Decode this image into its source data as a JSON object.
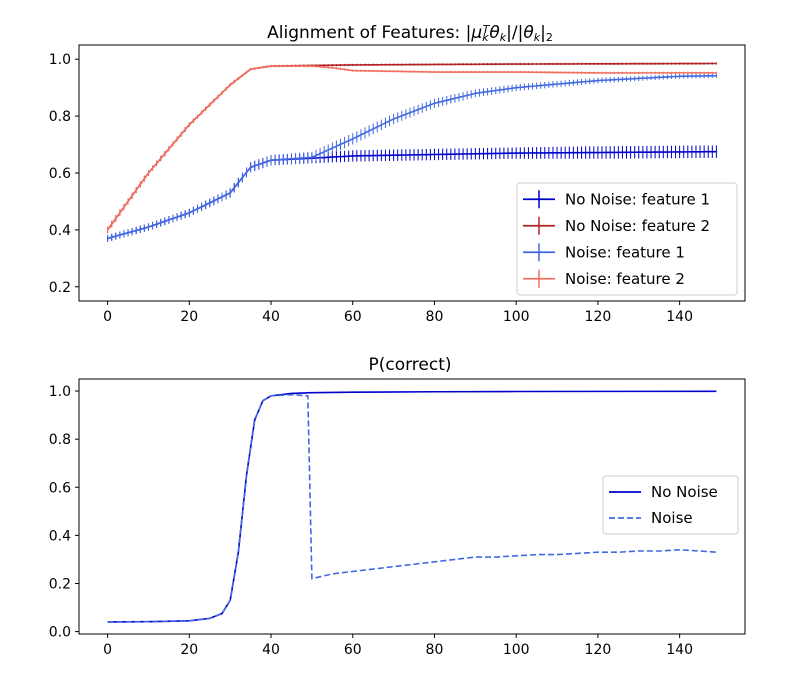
{
  "chart_data": [
    {
      "type": "line",
      "title": "Alignment of Features: |μ_k^T θ_k|/|θ_k|_2",
      "title_parts": {
        "prefix": "Alignment of Features: |",
        "mu": "μ",
        "mu_sub": "k",
        "mu_sup": "T",
        "theta1": "θ",
        "theta1_sub": "k",
        "mid": "|/|",
        "theta2": "θ",
        "theta2_sub": "k",
        "end": "|",
        "end_sub": "2"
      },
      "xlabel": "",
      "ylabel": "",
      "xlim": [
        -7,
        156
      ],
      "ylim": [
        0.15,
        1.05
      ],
      "xticks": [
        0,
        20,
        40,
        60,
        80,
        100,
        120,
        140
      ],
      "yticks": [
        0.2,
        0.4,
        0.6,
        0.8,
        1.0
      ],
      "ytick_labels": [
        "0.2",
        "0.4",
        "0.6",
        "0.8",
        "1.0"
      ],
      "grid": false,
      "legend_position": "lower right",
      "series": [
        {
          "name": "No Noise: feature 1",
          "color": "#0000cd",
          "errorbar": true,
          "x": [
            0,
            10,
            20,
            30,
            35,
            40,
            50,
            60,
            80,
            100,
            120,
            149
          ],
          "y": [
            0.37,
            0.41,
            0.46,
            0.53,
            0.62,
            0.645,
            0.652,
            0.66,
            0.665,
            0.67,
            0.672,
            0.675
          ],
          "err": [
            0.012,
            0.013,
            0.014,
            0.016,
            0.018,
            0.018,
            0.018,
            0.02,
            0.02,
            0.02,
            0.022,
            0.022
          ]
        },
        {
          "name": "No Noise: feature 2",
          "color": "#b22222",
          "errorbar": true,
          "x": [
            0,
            10,
            20,
            30,
            35,
            40,
            50,
            60,
            100,
            149
          ],
          "y": [
            0.4,
            0.6,
            0.77,
            0.91,
            0.965,
            0.976,
            0.978,
            0.98,
            0.983,
            0.985
          ],
          "err": [
            0.012,
            0.01,
            0.008,
            0.006,
            0.004,
            0.004,
            0.004,
            0.004,
            0.004,
            0.004
          ]
        },
        {
          "name": "Noise: feature 1",
          "color": "#4169e1",
          "errorbar": true,
          "x": [
            0,
            10,
            20,
            30,
            35,
            40,
            50,
            60,
            70,
            80,
            90,
            100,
            120,
            140,
            149
          ],
          "y": [
            0.37,
            0.41,
            0.46,
            0.53,
            0.62,
            0.645,
            0.655,
            0.72,
            0.79,
            0.845,
            0.88,
            0.9,
            0.925,
            0.94,
            0.942
          ],
          "err": [
            0.012,
            0.013,
            0.014,
            0.016,
            0.018,
            0.018,
            0.02,
            0.02,
            0.018,
            0.016,
            0.014,
            0.012,
            0.01,
            0.008,
            0.008
          ]
        },
        {
          "name": "Noise: feature 2",
          "color": "#f07060",
          "errorbar": true,
          "x": [
            0,
            10,
            20,
            30,
            35,
            40,
            50,
            55,
            60,
            80,
            100,
            120,
            149
          ],
          "y": [
            0.4,
            0.6,
            0.77,
            0.91,
            0.965,
            0.976,
            0.976,
            0.97,
            0.96,
            0.955,
            0.955,
            0.952,
            0.952
          ],
          "err": [
            0.012,
            0.01,
            0.008,
            0.006,
            0.004,
            0.004,
            0.004,
            0.004,
            0.004,
            0.004,
            0.004,
            0.004,
            0.004
          ]
        }
      ]
    },
    {
      "type": "line",
      "title": "P(correct)",
      "xlabel": "",
      "ylabel": "",
      "xlim": [
        -7,
        156
      ],
      "ylim": [
        -0.01,
        1.05
      ],
      "xticks": [
        0,
        20,
        40,
        60,
        80,
        100,
        120,
        140
      ],
      "yticks": [
        0.0,
        0.2,
        0.4,
        0.6,
        0.8,
        1.0
      ],
      "ytick_labels": [
        "0.0",
        "0.2",
        "0.4",
        "0.6",
        "0.8",
        "1.0"
      ],
      "grid": false,
      "legend_position": "center right",
      "series": [
        {
          "name": "No Noise",
          "color": "#0000cd",
          "style": "solid",
          "x": [
            0,
            10,
            20,
            25,
            28,
            30,
            32,
            34,
            36,
            38,
            40,
            45,
            50,
            60,
            80,
            100,
            149
          ],
          "y": [
            0.04,
            0.041,
            0.045,
            0.055,
            0.075,
            0.13,
            0.33,
            0.65,
            0.88,
            0.96,
            0.98,
            0.99,
            0.993,
            0.995,
            0.997,
            0.998,
            0.999
          ]
        },
        {
          "name": "Noise",
          "color": "#4169e1",
          "style": "dashed",
          "x": [
            0,
            10,
            20,
            25,
            28,
            30,
            32,
            34,
            36,
            38,
            40,
            45,
            49,
            50,
            55,
            60,
            65,
            70,
            75,
            80,
            85,
            90,
            95,
            100,
            105,
            110,
            115,
            120,
            125,
            130,
            135,
            140,
            145,
            149
          ],
          "y": [
            0.04,
            0.041,
            0.045,
            0.055,
            0.075,
            0.13,
            0.33,
            0.65,
            0.88,
            0.96,
            0.98,
            0.985,
            0.98,
            0.22,
            0.24,
            0.25,
            0.26,
            0.27,
            0.28,
            0.29,
            0.3,
            0.31,
            0.31,
            0.315,
            0.32,
            0.32,
            0.325,
            0.33,
            0.33,
            0.335,
            0.335,
            0.34,
            0.335,
            0.33
          ]
        }
      ]
    }
  ]
}
